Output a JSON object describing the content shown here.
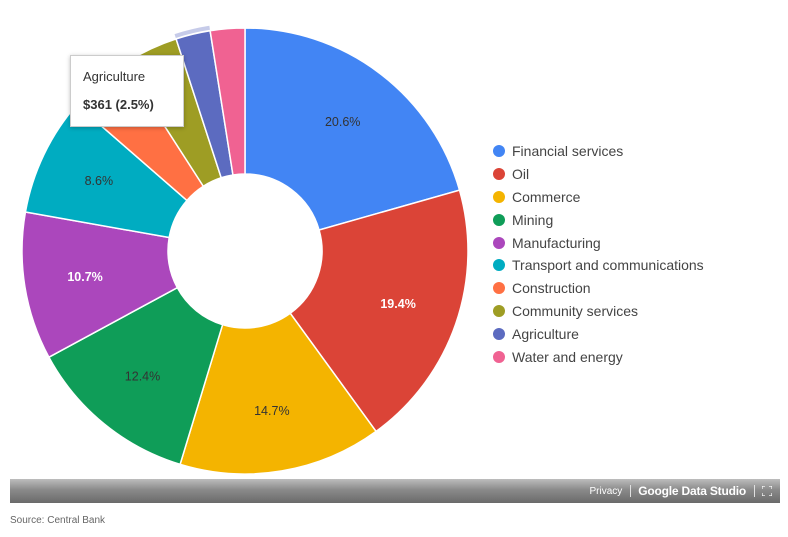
{
  "chart_data": {
    "type": "pie",
    "donut": true,
    "categories": [
      "Financial services",
      "Oil",
      "Commerce",
      "Mining",
      "Manufacturing",
      "Transport and communications",
      "Construction",
      "Community services",
      "Agriculture",
      "Water and energy"
    ],
    "values": [
      20.6,
      19.4,
      14.7,
      12.4,
      10.7,
      8.6,
      4.5,
      4.1,
      2.5,
      2.5
    ],
    "colors": [
      "#4285f4",
      "#db4437",
      "#f4b400",
      "#0f9d58",
      "#ab47bc",
      "#00acc1",
      "#ff7043",
      "#9e9d24",
      "#5c6bc0",
      "#f06292"
    ],
    "data_labels": [
      "20.6%",
      "19.4%",
      "14.7%",
      "12.4%",
      "10.7%",
      "8.6%",
      "",
      "",
      "",
      ""
    ],
    "label_colors": [
      "#333333",
      "#ffffff",
      "#333333",
      "#333333",
      "#ffffff",
      "#333333",
      "",
      "",
      "",
      ""
    ],
    "label_bold": [
      false,
      true,
      false,
      false,
      true,
      false,
      false,
      false,
      false,
      false
    ],
    "highlighted": "Agriculture",
    "legend_position": "right"
  },
  "tooltip": {
    "title": "Agriculture",
    "value": "$361 (2.5%)"
  },
  "footer": {
    "privacy": "Privacy",
    "brand": "Google Data Studio"
  },
  "source": "Source: Central Bank"
}
